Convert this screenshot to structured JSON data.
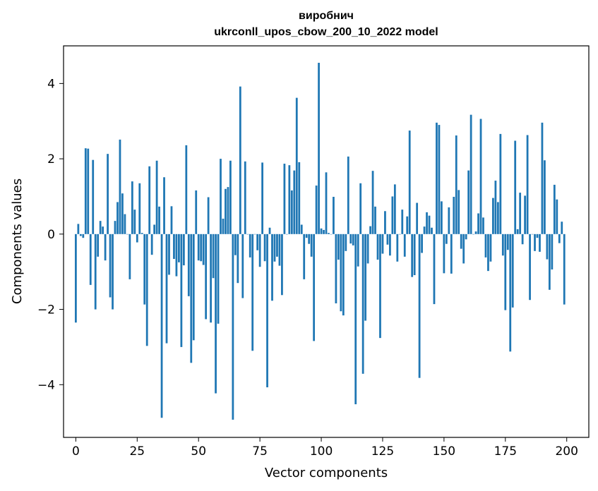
{
  "chart_data": {
    "type": "bar",
    "title_line1": "виробнич",
    "title_line2": "ukrconll_upos_cbow_200_10_2022 model",
    "xlabel": "Vector components",
    "ylabel": "Components values",
    "xlim": [
      -5,
      209
    ],
    "ylim": [
      -5.4,
      5.0
    ],
    "xticks": [
      0,
      25,
      50,
      75,
      100,
      125,
      150,
      175,
      200
    ],
    "yticks": [
      -4,
      -2,
      0,
      2,
      4
    ],
    "ytick_labels": [
      "−4",
      "−2",
      "0",
      "2",
      "4"
    ],
    "bar_color": "#1f77b4",
    "values": [
      -2.35,
      0.27,
      -0.05,
      -0.1,
      2.28,
      2.27,
      -1.35,
      1.97,
      -2.0,
      -0.6,
      0.35,
      0.2,
      -0.7,
      2.13,
      -1.68,
      -2.0,
      0.35,
      0.85,
      2.51,
      1.08,
      0.53,
      0.0,
      -1.2,
      1.4,
      0.65,
      -0.22,
      1.35,
      0.03,
      -1.87,
      -2.97,
      1.8,
      -0.55,
      0.25,
      1.95,
      0.73,
      -4.88,
      1.51,
      -2.9,
      -1.08,
      0.74,
      -0.66,
      -1.12,
      -0.75,
      -3.0,
      -0.83,
      2.36,
      -1.65,
      -3.42,
      -2.82,
      1.16,
      -0.7,
      -0.72,
      -0.82,
      -2.26,
      0.98,
      -2.35,
      -1.17,
      -4.23,
      -2.38,
      2.0,
      0.41,
      1.2,
      1.25,
      1.95,
      -4.93,
      -0.56,
      -1.3,
      3.92,
      -1.7,
      1.93,
      0.0,
      -0.62,
      -3.1,
      0.0,
      -0.43,
      -0.87,
      1.9,
      -0.72,
      -4.07,
      0.17,
      -1.77,
      -0.73,
      -0.6,
      -0.84,
      -1.62,
      1.87,
      0.0,
      1.83,
      1.16,
      1.69,
      3.62,
      1.91,
      0.25,
      -1.2,
      -0.1,
      -0.26,
      -0.6,
      -2.84,
      1.29,
      4.55,
      0.15,
      0.11,
      1.64,
      0.03,
      0.0,
      0.99,
      -1.84,
      -0.68,
      -2.05,
      -2.16,
      -0.45,
      2.06,
      -0.25,
      -0.3,
      -4.52,
      -0.86,
      1.35,
      -3.71,
      -2.3,
      -0.78,
      0.21,
      1.68,
      0.73,
      -0.68,
      -2.76,
      -0.52,
      0.61,
      -0.28,
      -0.57,
      1.0,
      1.32,
      -0.73,
      0.0,
      0.65,
      -0.6,
      0.47,
      2.75,
      -1.14,
      -1.09,
      0.83,
      -3.82,
      -0.5,
      0.2,
      0.58,
      0.49,
      0.17,
      -1.86,
      2.96,
      2.9,
      0.87,
      -1.04,
      -0.26,
      0.71,
      -1.05,
      0.99,
      2.62,
      1.17,
      -0.39,
      -0.78,
      -0.14,
      1.69,
      3.17,
      0.0,
      0.07,
      0.55,
      3.06,
      0.44,
      -0.62,
      -0.98,
      -0.73,
      0.96,
      1.42,
      0.85,
      2.66,
      -0.57,
      -2.02,
      -0.42,
      -3.12,
      -1.95,
      2.48,
      0.13,
      1.1,
      -0.27,
      1.02,
      2.63,
      -1.75,
      0.0,
      -0.45,
      -0.1,
      -0.47,
      2.96,
      1.96,
      -0.67,
      -1.48,
      -0.94,
      1.31,
      0.92,
      -0.24,
      0.33,
      -1.87
    ]
  }
}
